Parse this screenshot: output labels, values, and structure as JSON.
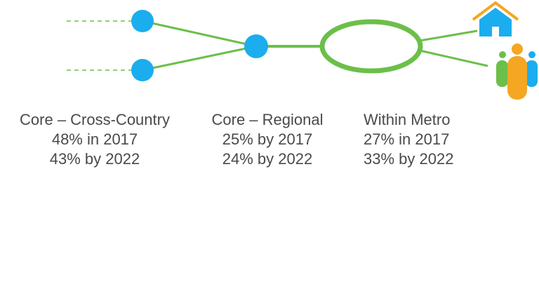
{
  "segments": [
    {
      "title": "Core – Cross-Country",
      "lines": [
        "48% in 2017",
        "43% by 2022"
      ]
    },
    {
      "title": "Core – Regional",
      "lines": [
        "25% by 2017",
        "24% by 2022"
      ]
    },
    {
      "title": "Within Metro",
      "lines": [
        "27% in 2017",
        "33% by 2022"
      ]
    }
  ]
}
